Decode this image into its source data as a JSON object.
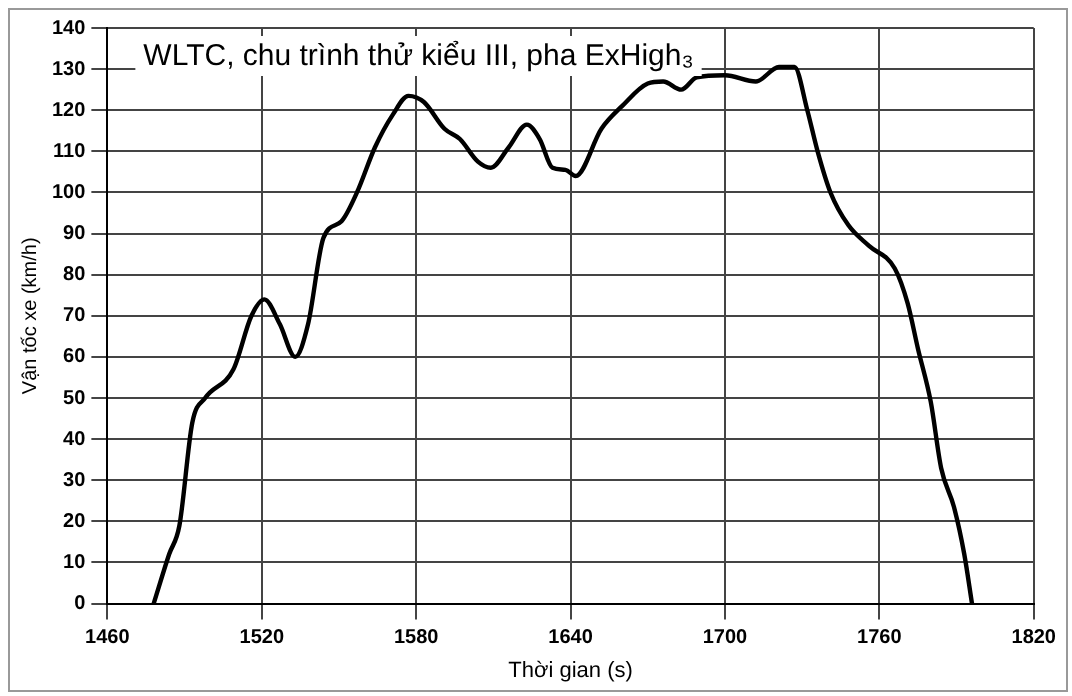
{
  "chart_data": {
    "type": "line",
    "title": "WLTC, chu trình thử kiểu III, pha ExHigh₃",
    "xlabel": "Thời gian (s)",
    "ylabel": "Vận tốc xe (km/h)",
    "x": [
      1478,
      1484,
      1488,
      1493,
      1498,
      1509,
      1516,
      1521,
      1527,
      1533,
      1538,
      1544,
      1551,
      1557,
      1564,
      1571,
      1577,
      1583,
      1591,
      1597,
      1604,
      1609,
      1616,
      1623,
      1628,
      1633,
      1638,
      1642,
      1652,
      1660,
      1670,
      1676,
      1683,
      1689,
      1700,
      1712,
      1721,
      1727,
      1732,
      1736,
      1741,
      1748,
      1756,
      1766,
      1771,
      1775,
      1780,
      1784,
      1789,
      1793,
      1796
    ],
    "series": [
      {
        "color": "#000000",
        "values": [
          0,
          12,
          19,
          44,
          50,
          57,
          70,
          74,
          68,
          60,
          68,
          89,
          93,
          100,
          111,
          119,
          123.5,
          122,
          115.5,
          113,
          107.5,
          106,
          111,
          116.5,
          113,
          106,
          105.5,
          104,
          115.5,
          121,
          126.5,
          127,
          125,
          128,
          128.5,
          127,
          130.5,
          130.5,
          120,
          110,
          100,
          92,
          87,
          81.5,
          73,
          62,
          49,
          33,
          23.5,
          12,
          0
        ]
      }
    ],
    "xlim": [
      1460,
      1820
    ],
    "xticks": [
      1460,
      1520,
      1580,
      1640,
      1700,
      1760,
      1820
    ],
    "ylim": [
      0,
      140
    ],
    "yticks": [
      0,
      10,
      20,
      30,
      40,
      50,
      60,
      70,
      80,
      90,
      100,
      110,
      120,
      130,
      140
    ],
    "grid": true,
    "legend": false,
    "marker": "none",
    "line_style": "solid"
  }
}
